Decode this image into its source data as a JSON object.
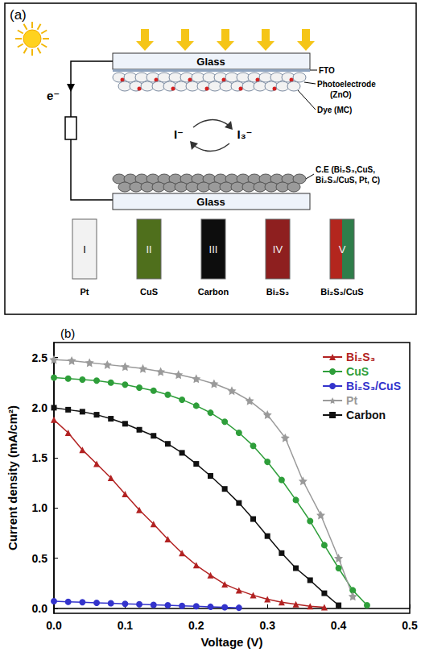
{
  "diagram": {
    "label": "(a)",
    "top_glass": "Glass",
    "fto": "FTO",
    "photoelectrode": [
      "Photoelectrode",
      "(ZnO)"
    ],
    "dye": "Dye (MC)",
    "electron": "e⁻",
    "redox": [
      "I⁻",
      "I₃⁻"
    ],
    "counter_electrode": [
      "C.E (Bi₂S₃,CuS,",
      "Bi₂S₃/CuS, Pt, C)"
    ],
    "bottom_glass": "Glass",
    "samples": [
      {
        "numeral": "I",
        "name": "Pt",
        "colors": [
          "#f2f2f2"
        ]
      },
      {
        "numeral": "II",
        "name": "CuS",
        "colors": [
          "#4f6f1c"
        ]
      },
      {
        "numeral": "III",
        "name": "Carbon",
        "colors": [
          "#0d0d0d"
        ]
      },
      {
        "numeral": "IV",
        "name": "Bi₂S₃",
        "colors": [
          "#8e1f1f"
        ]
      },
      {
        "numeral": "V",
        "name": "Bi₂S₃/CuS",
        "colors": [
          "#b3261e",
          "#2f7d4a"
        ]
      }
    ]
  },
  "chart_data": {
    "type": "line",
    "title": "(b)",
    "x_label": "Voltage (V)",
    "y_label": "Current density (mA/cm²)",
    "xlim": [
      0,
      0.5
    ],
    "xticks": [
      {
        "value": 0,
        "label": "0.0"
      },
      0.1,
      0.2,
      0.3,
      0.4,
      0.5
    ],
    "ylim": [
      -0.05,
      2.65
    ],
    "yticks": [
      {
        "value": 0,
        "label": "0.0"
      },
      0.5,
      {
        "value": 1,
        "label": "1.0"
      },
      1.5,
      {
        "value": 2,
        "label": "2.0"
      },
      2.5
    ],
    "grid": false,
    "legend": "upper right",
    "series": [
      {
        "name": "Bi₂S₃",
        "color": "#b22222",
        "marker": "triangle",
        "x": [
          0,
          0.02,
          0.04,
          0.06,
          0.08,
          0.1,
          0.12,
          0.14,
          0.16,
          0.18,
          0.2,
          0.22,
          0.24,
          0.26,
          0.28,
          0.3,
          0.32,
          0.34,
          0.36,
          0.38
        ],
        "values": [
          1.88,
          1.75,
          1.58,
          1.44,
          1.3,
          1.14,
          0.98,
          0.84,
          0.69,
          0.55,
          0.43,
          0.33,
          0.24,
          0.18,
          0.13,
          0.09,
          0.06,
          0.04,
          0.02,
          0.01
        ]
      },
      {
        "name": "CuS",
        "color": "#2e9e3a",
        "marker": "circle",
        "x": [
          0,
          0.02,
          0.04,
          0.06,
          0.08,
          0.1,
          0.12,
          0.14,
          0.16,
          0.18,
          0.2,
          0.22,
          0.24,
          0.26,
          0.28,
          0.3,
          0.32,
          0.34,
          0.36,
          0.38,
          0.4,
          0.42,
          0.44
        ],
        "values": [
          2.3,
          2.29,
          2.28,
          2.27,
          2.25,
          2.23,
          2.2,
          2.17,
          2.13,
          2.08,
          2.02,
          1.95,
          1.86,
          1.75,
          1.62,
          1.46,
          1.28,
          1.08,
          0.87,
          0.63,
          0.4,
          0.18,
          0.03
        ]
      },
      {
        "name": "Bi₂S₃/CuS",
        "color": "#3333cc",
        "marker": "circle",
        "x": [
          0,
          0.02,
          0.04,
          0.06,
          0.08,
          0.1,
          0.12,
          0.14,
          0.16,
          0.18,
          0.2,
          0.22,
          0.24,
          0.26
        ],
        "values": [
          0.07,
          0.065,
          0.06,
          0.055,
          0.05,
          0.045,
          0.04,
          0.035,
          0.03,
          0.025,
          0.02,
          0.015,
          0.01,
          0.005
        ]
      },
      {
        "name": "Pt",
        "color": "#9a9a9a",
        "marker": "star",
        "x": [
          0,
          0.025,
          0.05,
          0.075,
          0.1,
          0.125,
          0.15,
          0.175,
          0.2,
          0.225,
          0.25,
          0.275,
          0.3,
          0.325,
          0.35,
          0.375,
          0.4,
          0.42
        ],
        "values": [
          2.48,
          2.47,
          2.45,
          2.43,
          2.41,
          2.39,
          2.36,
          2.33,
          2.29,
          2.24,
          2.17,
          2.07,
          1.93,
          1.7,
          1.27,
          0.93,
          0.5,
          0.12
        ]
      },
      {
        "name": "Carbon",
        "color": "#111111",
        "marker": "square",
        "x": [
          0,
          0.02,
          0.04,
          0.06,
          0.08,
          0.1,
          0.12,
          0.14,
          0.16,
          0.18,
          0.2,
          0.22,
          0.24,
          0.26,
          0.28,
          0.3,
          0.32,
          0.34,
          0.36,
          0.38,
          0.4
        ],
        "values": [
          2.0,
          1.98,
          1.96,
          1.93,
          1.89,
          1.84,
          1.78,
          1.72,
          1.64,
          1.55,
          1.44,
          1.32,
          1.19,
          1.05,
          0.89,
          0.72,
          0.55,
          0.4,
          0.28,
          0.15,
          0.03
        ]
      }
    ]
  }
}
